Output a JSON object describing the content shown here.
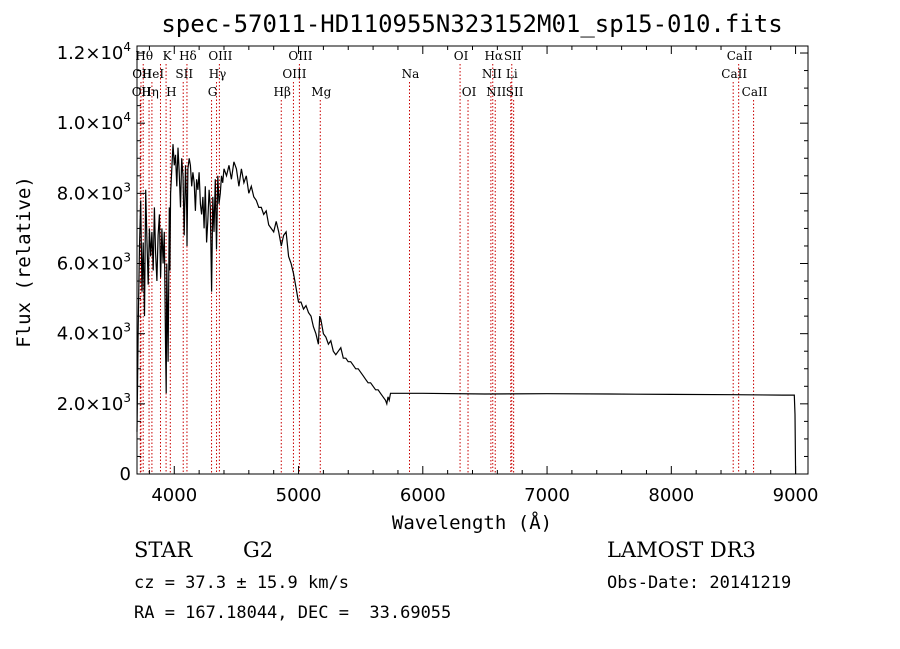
{
  "chart_data": {
    "type": "line",
    "title": "spec-57011-HD110955N323152M01_sp15-010.fits",
    "xlabel": "Wavelength (Å)",
    "ylabel": "Flux (relative)",
    "xlim": [
      3700,
      9100
    ],
    "ylim": [
      0,
      12200
    ],
    "x_ticks": [
      4000,
      5000,
      6000,
      7000,
      8000,
      9000
    ],
    "x_tick_labels": [
      "4000",
      "5000",
      "6000",
      "7000",
      "8000",
      "9000"
    ],
    "y_ticks": [
      {
        "value": 0,
        "mantissa": "0",
        "exponent": ""
      },
      {
        "value": 2000,
        "mantissa": "2.0×10",
        "exponent": "3"
      },
      {
        "value": 4000,
        "mantissa": "4.0×10",
        "exponent": "3"
      },
      {
        "value": 6000,
        "mantissa": "6.0×10",
        "exponent": "3"
      },
      {
        "value": 8000,
        "mantissa": "8.0×10",
        "exponent": "3"
      },
      {
        "value": 10000,
        "mantissa": "1.0×10",
        "exponent": "4"
      },
      {
        "value": 12000,
        "mantissa": "1.2×10",
        "exponent": "4"
      }
    ],
    "series": [
      {
        "name": "spectrum",
        "color": "#000000",
        "x": [
          3700,
          3710,
          3720,
          3730,
          3740,
          3750,
          3760,
          3770,
          3780,
          3790,
          3800,
          3810,
          3820,
          3830,
          3840,
          3850,
          3860,
          3870,
          3880,
          3890,
          3900,
          3910,
          3920,
          3930,
          3935,
          3940,
          3950,
          3960,
          3965,
          3970,
          3980,
          3990,
          4000,
          4010,
          4020,
          4030,
          4040,
          4050,
          4060,
          4070,
          4080,
          4090,
          4100,
          4102,
          4110,
          4120,
          4130,
          4140,
          4150,
          4160,
          4170,
          4180,
          4190,
          4200,
          4210,
          4220,
          4230,
          4240,
          4250,
          4260,
          4270,
          4280,
          4290,
          4300,
          4310,
          4320,
          4330,
          4340,
          4350,
          4360,
          4370,
          4380,
          4390,
          4400,
          4420,
          4440,
          4460,
          4480,
          4500,
          4520,
          4540,
          4560,
          4580,
          4600,
          4620,
          4640,
          4660,
          4680,
          4700,
          4720,
          4740,
          4760,
          4780,
          4800,
          4820,
          4840,
          4861,
          4880,
          4900,
          4920,
          4940,
          4960,
          4980,
          5000,
          5020,
          5040,
          5060,
          5080,
          5100,
          5120,
          5140,
          5160,
          5170,
          5180,
          5200,
          5220,
          5240,
          5260,
          5280,
          5300,
          5320,
          5340,
          5360,
          5380,
          5400,
          5420,
          5440,
          5460,
          5480,
          5500,
          5520,
          5540,
          5560,
          5580,
          5600,
          5620,
          5640,
          5660,
          5680,
          5700,
          5710,
          5720,
          5730,
          5740,
          5760,
          5800,
          6000,
          6500,
          7000,
          7500,
          8000,
          8500,
          8900,
          8990,
          8995,
          9000
        ],
        "values": [
          1200,
          4200,
          6500,
          7800,
          5200,
          6600,
          4500,
          8100,
          6700,
          5400,
          7000,
          6200,
          6900,
          5800,
          7600,
          6300,
          5500,
          6800,
          7400,
          5600,
          7000,
          6000,
          6900,
          3500,
          2300,
          6000,
          3200,
          7600,
          5800,
          8000,
          8700,
          9400,
          8800,
          9100,
          8200,
          9300,
          8600,
          7600,
          9000,
          8500,
          6800,
          8800,
          7500,
          6500,
          8700,
          9000,
          8800,
          8200,
          8600,
          8300,
          7500,
          8400,
          8100,
          8600,
          7700,
          7400,
          7900,
          7000,
          8200,
          6600,
          7200,
          8100,
          7600,
          5200,
          7900,
          6900,
          8400,
          6400,
          8500,
          7700,
          8000,
          8500,
          8300,
          8700,
          8500,
          8800,
          8400,
          8900,
          8700,
          8200,
          8700,
          8300,
          8500,
          8000,
          8200,
          7900,
          7800,
          7600,
          7600,
          7400,
          7500,
          7100,
          7000,
          6900,
          7200,
          6900,
          6500,
          6800,
          6900,
          6200,
          6000,
          5700,
          5300,
          4900,
          4900,
          4700,
          4800,
          4600,
          4500,
          4200,
          4000,
          3700,
          4500,
          4400,
          4000,
          3900,
          3700,
          3800,
          3500,
          3400,
          3500,
          3600,
          3300,
          3300,
          3200,
          3200,
          3100,
          3000,
          3000,
          2900,
          2800,
          2700,
          2600,
          2600,
          2500,
          2400,
          2400,
          2300,
          2200,
          2100,
          2000,
          2200,
          2100,
          2300,
          2300,
          2300,
          2300,
          2280,
          2290,
          2280,
          2270,
          2260,
          2250,
          2250,
          1700,
          0
        ]
      }
    ],
    "lines": [
      {
        "wavelength": 3727,
        "label": "OII",
        "row": 2
      },
      {
        "wavelength": 3732,
        "label": "OII",
        "row": 1
      },
      {
        "wavelength": 3750,
        "label": "Hθ",
        "row": 0
      },
      {
        "wavelength": 3797,
        "label": "Hη",
        "row": 2
      },
      {
        "wavelength": 3820,
        "label": "HeI",
        "row": 1
      },
      {
        "wavelength": 3889,
        "label": "",
        "row": 0
      },
      {
        "wavelength": 3934,
        "label": "K",
        "row": 0
      },
      {
        "wavelength": 3968,
        "label": "H",
        "row": 2
      },
      {
        "wavelength": 4072,
        "label": "SII",
        "row": 1
      },
      {
        "wavelength": 4102,
        "label": "Hδ",
        "row": 0
      },
      {
        "wavelength": 4300,
        "label": "G",
        "row": 2
      },
      {
        "wavelength": 4340,
        "label": "Hγ",
        "row": 1
      },
      {
        "wavelength": 4363,
        "label": "OIII",
        "row": 0
      },
      {
        "wavelength": 4861,
        "label": "Hβ",
        "row": 2
      },
      {
        "wavelength": 4959,
        "label": "OIII",
        "row": 1
      },
      {
        "wavelength": 5007,
        "label": "OIII",
        "row": 0
      },
      {
        "wavelength": 5175,
        "label": "Mg",
        "row": 2
      },
      {
        "wavelength": 5893,
        "label": "Na",
        "row": 1
      },
      {
        "wavelength": 6300,
        "label": "OI",
        "row": 0
      },
      {
        "wavelength": 6364,
        "label": "OI",
        "row": 2
      },
      {
        "wavelength": 6548,
        "label": "NII",
        "row": 1
      },
      {
        "wavelength": 6563,
        "label": "Hα",
        "row": 0
      },
      {
        "wavelength": 6583,
        "label": "NII",
        "row": 2
      },
      {
        "wavelength": 6708,
        "label": "Li",
        "row": 1
      },
      {
        "wavelength": 6716,
        "label": "SII",
        "row": 0
      },
      {
        "wavelength": 6731,
        "label": "SII",
        "row": 2
      },
      {
        "wavelength": 8498,
        "label": "CaII",
        "row": 1
      },
      {
        "wavelength": 8542,
        "label": "CaII",
        "row": 0
      },
      {
        "wavelength": 8662,
        "label": "CaII",
        "row": 2
      }
    ],
    "line_color": "#c80000"
  },
  "info": {
    "object_class": "STAR",
    "subclass": "G2",
    "survey": "LAMOST DR3",
    "redshift": "cz = 37.3 ± 15.9 km/s",
    "obs_date": "Obs-Date: 20141219",
    "coords": "RA = 167.18044, DEC =  33.69055"
  }
}
